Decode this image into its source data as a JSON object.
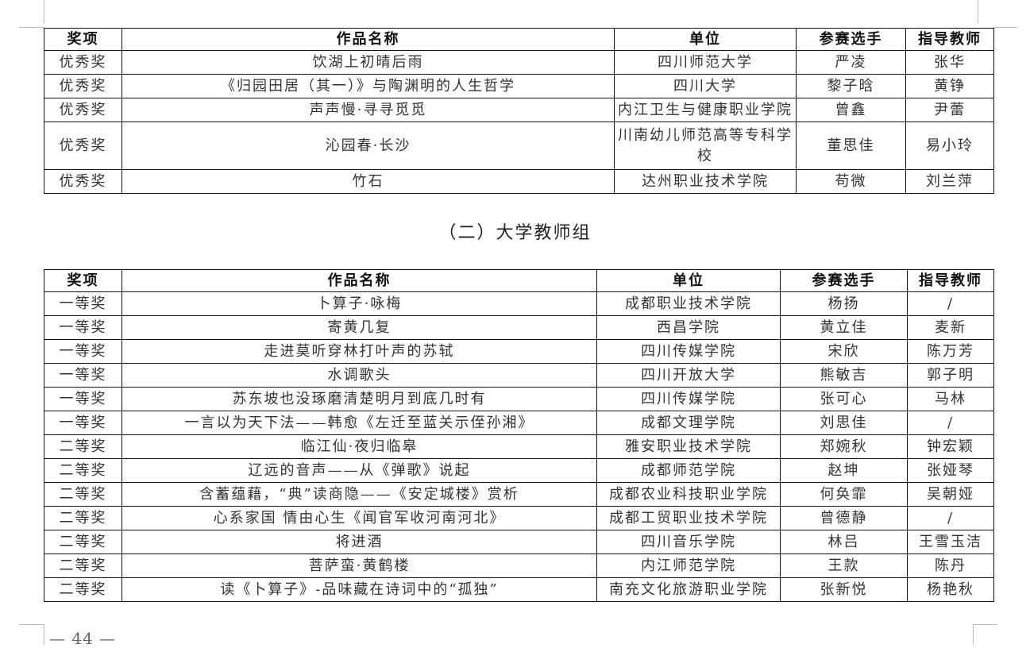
{
  "headers": [
    "奖项",
    "作品名称",
    "单位",
    "参赛选手",
    "指导教师"
  ],
  "table1": [
    [
      "优秀奖",
      "饮湖上初晴后雨",
      "四川师范大学",
      "严凌",
      "张华"
    ],
    [
      "优秀奖",
      "《归园田居（其一）》与陶渊明的人生哲学",
      "四川大学",
      "黎子晗",
      "黄铮"
    ],
    [
      "优秀奖",
      "声声慢·寻寻觅觅",
      "内江卫生与健康职业学院",
      "曾鑫",
      "尹蕾"
    ],
    [
      "优秀奖",
      "沁园春·长沙",
      "川南幼儿师范高等专科学校",
      "董思佳",
      "易小玲"
    ],
    [
      "优秀奖",
      "竹石",
      "达州职业技术学院",
      "苟微",
      "刘兰萍"
    ]
  ],
  "section_heading": "（二）大学教师组",
  "table2": [
    [
      "一等奖",
      "卜算子·咏梅",
      "成都职业技术学院",
      "杨扬",
      "/"
    ],
    [
      "一等奖",
      "寄黄几复",
      "西昌学院",
      "黄立佳",
      "麦新"
    ],
    [
      "一等奖",
      "走进莫听穿林打叶声的苏轼",
      "四川传媒学院",
      "宋欣",
      "陈万芳"
    ],
    [
      "一等奖",
      "水调歌头",
      "四川开放大学",
      "熊敏吉",
      "郭子明"
    ],
    [
      "一等奖",
      "苏东坡也没琢磨清楚明月到底几时有",
      "四川传媒学院",
      "张可心",
      "马林"
    ],
    [
      "一等奖",
      "一言以为天下法——韩愈《左迁至蓝关示侄孙湘》",
      "成都文理学院",
      "刘思佳",
      "/"
    ],
    [
      "二等奖",
      "临江仙·夜归临皋",
      "雅安职业技术学院",
      "郑婉秋",
      "钟宏颖"
    ],
    [
      "二等奖",
      "辽远的音声——从《弹歌》说起",
      "成都师范学院",
      "赵坤",
      "张娅琴"
    ],
    [
      "二等奖",
      "含蓄蕴藉，“典”读商隐——《安定城楼》赏析",
      "成都农业科技职业学院",
      "何奂霏",
      "吴朝娅"
    ],
    [
      "二等奖",
      "心系家国 情由心生《闻官军收河南河北》",
      "成都工贸职业技术学院",
      "曾德静",
      "/"
    ],
    [
      "二等奖",
      "将进酒",
      "四川音乐学院",
      "林吕",
      "王雪玉洁"
    ],
    [
      "二等奖",
      "菩萨蛮·黄鹤楼",
      "内江师范学院",
      "王款",
      "陈丹"
    ],
    [
      "二等奖",
      "读《卜算子》-品味藏在诗词中的“孤独”",
      "南充文化旅游职业学院",
      "张新悦",
      "杨艳秋"
    ]
  ],
  "page_number": "— 44 —"
}
